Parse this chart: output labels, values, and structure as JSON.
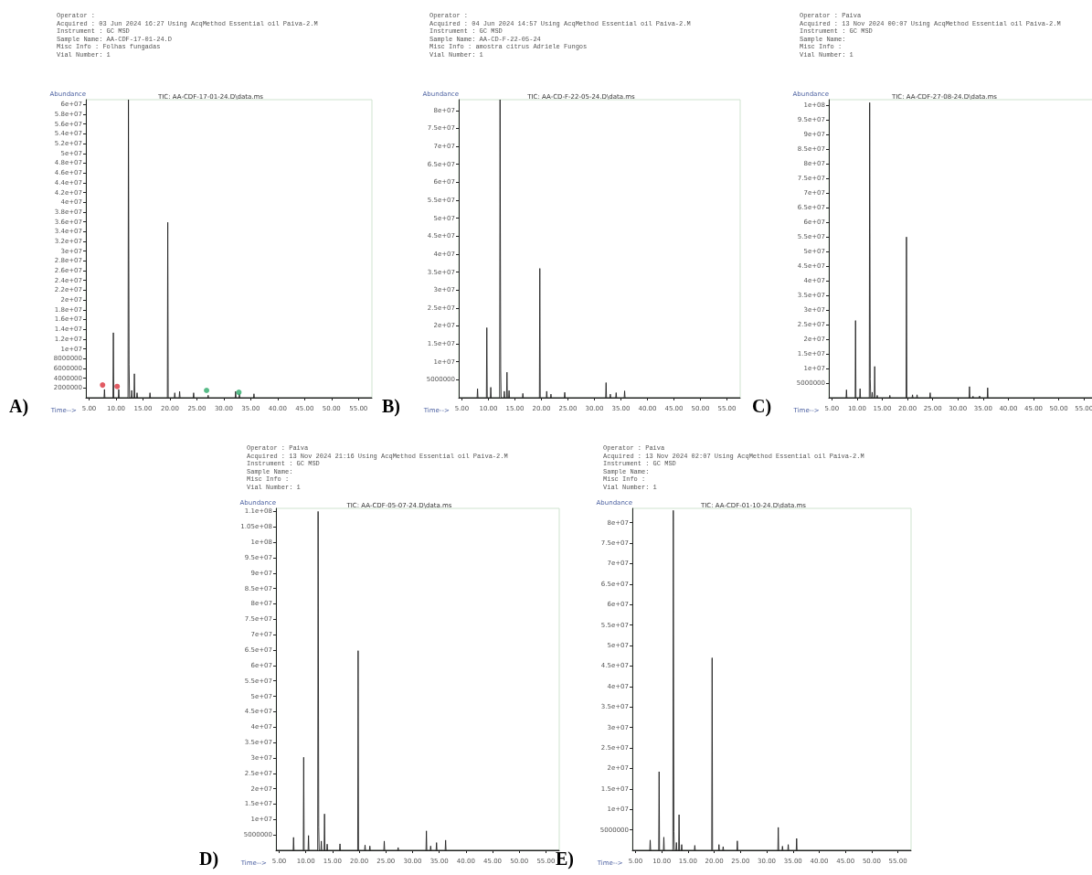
{
  "chart_data": [
    {
      "type": "line",
      "title": "TIC: AA-CDF-17-01-24.D\\data.ms",
      "xlabel": "Time-->",
      "ylabel": "Abundance",
      "marker": "none",
      "line_style": "solid",
      "xlim": [
        4.4,
        57.5
      ],
      "ylim": [
        0,
        61000000
      ],
      "annotations": [
        "Operator :",
        "Acquired : 03 Jun 2024 16:27 Using AcqMethod Essential oil Paiva-2.M",
        "Instrument : GC MSD",
        "Sample Name: AA-CDF-17-01-24.D",
        "Misc Info : Folhas fungadas",
        "Vial Number: 1",
        "A)"
      ],
      "xticks": [
        {
          "value": 5,
          "label": "5.00"
        },
        {
          "value": 10,
          "label": "10.00"
        },
        {
          "value": 15,
          "label": "15.00"
        },
        {
          "value": 20,
          "label": "20.00"
        },
        {
          "value": 25,
          "label": "25.00"
        },
        {
          "value": 30,
          "label": "30.00"
        },
        {
          "value": 35,
          "label": "35.00"
        },
        {
          "value": 40,
          "label": "40.00"
        },
        {
          "value": 45,
          "label": "45.00"
        },
        {
          "value": 50,
          "label": "50.00"
        },
        {
          "value": 55,
          "label": "55.00"
        }
      ],
      "yticks": [
        2000000,
        4000000,
        6000000,
        8000000,
        {
          "value": 10000000,
          "label": "1e+07"
        },
        {
          "value": 12000000,
          "label": "1.2e+07"
        },
        {
          "value": 14000000,
          "label": "1.4e+07"
        },
        {
          "value": 16000000,
          "label": "1.6e+07"
        },
        {
          "value": 18000000,
          "label": "1.8e+07"
        },
        {
          "value": 20000000,
          "label": "2e+07"
        },
        {
          "value": 22000000,
          "label": "2.2e+07"
        },
        {
          "value": 24000000,
          "label": "2.4e+07"
        },
        {
          "value": 26000000,
          "label": "2.6e+07"
        },
        {
          "value": 28000000,
          "label": "2.8e+07"
        },
        {
          "value": 30000000,
          "label": "3e+07"
        },
        {
          "value": 32000000,
          "label": "3.2e+07"
        },
        {
          "value": 34000000,
          "label": "3.4e+07"
        },
        {
          "value": 36000000,
          "label": "3.6e+07"
        },
        {
          "value": 38000000,
          "label": "3.8e+07"
        },
        {
          "value": 40000000,
          "label": "4e+07"
        },
        {
          "value": 42000000,
          "label": "4.2e+07"
        },
        {
          "value": 44000000,
          "label": "4.4e+07"
        },
        {
          "value": 46000000,
          "label": "4.6e+07"
        },
        {
          "value": 48000000,
          "label": "4.8e+07"
        },
        {
          "value": 50000000,
          "label": "5e+07"
        },
        {
          "value": 52000000,
          "label": "5.2e+07"
        },
        {
          "value": 54000000,
          "label": "5.4e+07"
        },
        {
          "value": 56000000,
          "label": "5.6e+07"
        },
        {
          "value": 58000000,
          "label": "5.8e+07"
        },
        {
          "value": 60000000,
          "label": "6e+07"
        }
      ],
      "series": [
        {
          "color": "#222222",
          "x": [
            4.4,
            7.77,
            7.85,
            7.93,
            9.42,
            9.5,
            9.58,
            10.42,
            10.5,
            10.58,
            12.22,
            12.3,
            12.42,
            12.5,
            12.82,
            12.9,
            12.98,
            13.32,
            13.4,
            13.48,
            13.82,
            13.9,
            13.98,
            16.22,
            16.3,
            16.38,
            19.52,
            19.6,
            19.68,
            20.82,
            20.9,
            20.98,
            21.72,
            21.8,
            21.88,
            24.32,
            24.4,
            24.48,
            27.02,
            27.1,
            27.18,
            32.12,
            32.2,
            32.28,
            32.82,
            32.9,
            32.98,
            35.52,
            35.6,
            35.68,
            57.5
          ],
          "values": [
            0,
            0,
            1700000,
            0,
            0,
            13300000,
            0,
            0,
            1700000,
            0,
            0,
            61000000,
            6900000,
            0,
            0,
            1500000,
            0,
            0,
            4900000,
            0,
            0,
            1000000,
            0,
            0,
            1000000,
            0,
            0,
            35900000,
            0,
            0,
            1000000,
            0,
            0,
            1300000,
            0,
            0,
            1000000,
            0,
            0,
            500000,
            0,
            0,
            1300000,
            0,
            0,
            800000,
            0,
            0,
            800000,
            0,
            0
          ]
        },
        {
          "type": "scatter",
          "marker": "circle",
          "x": [
            7.5,
            10.2,
            26.8,
            32.8
          ],
          "values": [
            2600000,
            2300000,
            1500000,
            1100000
          ],
          "colors": [
            "#d9323c",
            "#d9323c",
            "#2eaa6a",
            "#2eaa6a"
          ]
        }
      ]
    },
    {
      "type": "line",
      "title": "TIC: AA-CD-F-22-05-24.D\\data.ms",
      "xlabel": "Time-->",
      "ylabel": "Abundance",
      "marker": "none",
      "line_style": "solid",
      "xlim": [
        4.4,
        57.5
      ],
      "ylim": [
        0,
        83000000
      ],
      "annotations": [
        "Operator :",
        "Acquired : 04 Jun 2024 14:57 Using AcqMethod Essential oil Paiva-2.M",
        "Instrument : GC MSD",
        "Sample Name: AA-CD-F-22-05-24",
        "Misc Info : amostra citrus Adriele Fungos",
        "Vial Number: 1",
        "B)"
      ],
      "xticks": [
        {
          "value": 5,
          "label": "5.00"
        },
        {
          "value": 10,
          "label": "10.00"
        },
        {
          "value": 15,
          "label": "15.00"
        },
        {
          "value": 20,
          "label": "20.00"
        },
        {
          "value": 25,
          "label": "25.00"
        },
        {
          "value": 30,
          "label": "30.00"
        },
        {
          "value": 35,
          "label": "35.00"
        },
        {
          "value": 40,
          "label": "40.00"
        },
        {
          "value": 45,
          "label": "45.00"
        },
        {
          "value": 50,
          "label": "50.00"
        },
        {
          "value": 55,
          "label": "55.00"
        }
      ],
      "yticks": [
        5000000,
        {
          "value": 10000000,
          "label": "1e+07"
        },
        {
          "value": 15000000,
          "label": "1.5e+07"
        },
        {
          "value": 20000000,
          "label": "2e+07"
        },
        {
          "value": 25000000,
          "label": "2.5e+07"
        },
        {
          "value": 30000000,
          "label": "3e+07"
        },
        {
          "value": 35000000,
          "label": "3.5e+07"
        },
        {
          "value": 40000000,
          "label": "4e+07"
        },
        {
          "value": 45000000,
          "label": "4.5e+07"
        },
        {
          "value": 50000000,
          "label": "5e+07"
        },
        {
          "value": 55000000,
          "label": "5.5e+07"
        },
        {
          "value": 60000000,
          "label": "6e+07"
        },
        {
          "value": 65000000,
          "label": "6.5e+07"
        },
        {
          "value": 70000000,
          "label": "7e+07"
        },
        {
          "value": 75000000,
          "label": "7.5e+07"
        },
        {
          "value": 80000000,
          "label": "8e+07"
        }
      ],
      "series": [
        {
          "color": "#222222",
          "x": [
            4.4,
            7.87,
            7.95,
            8.03,
            9.62,
            9.7,
            9.78,
            10.37,
            10.45,
            10.53,
            12.12,
            12.2,
            12.32,
            12.4,
            12.92,
            13.0,
            13.08,
            13.42,
            13.5,
            13.58,
            13.82,
            13.9,
            13.98,
            16.42,
            16.5,
            16.58,
            19.62,
            19.7,
            19.78,
            20.92,
            21.0,
            21.08,
            21.72,
            21.8,
            21.88,
            24.32,
            24.4,
            24.48,
            32.12,
            32.2,
            32.28,
            32.92,
            33.0,
            33.08,
            34.02,
            34.1,
            34.18,
            35.62,
            35.7,
            35.78,
            57.5
          ],
          "values": [
            0,
            0,
            2500000,
            0,
            0,
            19500000,
            0,
            0,
            2900000,
            0,
            0,
            83000000,
            7400000,
            0,
            0,
            1800000,
            0,
            0,
            7100000,
            0,
            0,
            2000000,
            0,
            0,
            1200000,
            0,
            0,
            36000000,
            0,
            0,
            1800000,
            0,
            0,
            1000000,
            0,
            0,
            1500000,
            0,
            0,
            4200000,
            0,
            0,
            1000000,
            0,
            0,
            1400000,
            0,
            0,
            1900000,
            0,
            0
          ]
        }
      ]
    },
    {
      "type": "line",
      "title": "TIC: AA-CDF-27-08-24.D\\data.ms",
      "xlabel": "Time-->",
      "ylabel": "Abundance",
      "marker": "none",
      "line_style": "solid",
      "xlim": [
        4.4,
        57.5
      ],
      "ylim": [
        0,
        102000000
      ],
      "annotations": [
        "Operator : Paiva",
        "Acquired : 13 Nov 2024 00:07 Using AcqMethod Essential oil Paiva-2.M",
        "Instrument : GC MSD",
        "Sample Name:",
        "Misc Info :",
        "Vial Number: 1",
        "C)"
      ],
      "xticks": [
        {
          "value": 5,
          "label": "5.00"
        },
        {
          "value": 10,
          "label": "10.00"
        },
        {
          "value": 15,
          "label": "15.00"
        },
        {
          "value": 20,
          "label": "20.00"
        },
        {
          "value": 25,
          "label": "25.00"
        },
        {
          "value": 30,
          "label": "30.00"
        },
        {
          "value": 35,
          "label": "35.00"
        },
        {
          "value": 40,
          "label": "40.00"
        },
        {
          "value": 45,
          "label": "45.00"
        },
        {
          "value": 50,
          "label": "50.00"
        },
        {
          "value": 55,
          "label": "55.00"
        }
      ],
      "yticks": [
        5000000,
        {
          "value": 10000000,
          "label": "1e+07"
        },
        {
          "value": 15000000,
          "label": "1.5e+07"
        },
        {
          "value": 20000000,
          "label": "2e+07"
        },
        {
          "value": 25000000,
          "label": "2.5e+07"
        },
        {
          "value": 30000000,
          "label": "3e+07"
        },
        {
          "value": 35000000,
          "label": "3.5e+07"
        },
        {
          "value": 40000000,
          "label": "4e+07"
        },
        {
          "value": 45000000,
          "label": "4.5e+07"
        },
        {
          "value": 50000000,
          "label": "5e+07"
        },
        {
          "value": 55000000,
          "label": "5.5e+07"
        },
        {
          "value": 60000000,
          "label": "6e+07"
        },
        {
          "value": 65000000,
          "label": "6.5e+07"
        },
        {
          "value": 70000000,
          "label": "7e+07"
        },
        {
          "value": 75000000,
          "label": "7.5e+07"
        },
        {
          "value": 80000000,
          "label": "8e+07"
        },
        {
          "value": 85000000,
          "label": "8.5e+07"
        },
        {
          "value": 90000000,
          "label": "9e+07"
        },
        {
          "value": 95000000,
          "label": "9.5e+07"
        },
        {
          "value": 100000000,
          "label": "1e+08"
        }
      ],
      "series": [
        {
          "color": "#222222",
          "x": [
            4.4,
            7.82,
            7.9,
            7.98,
            9.62,
            9.7,
            9.78,
            10.52,
            10.6,
            10.68,
            12.42,
            12.5,
            12.62,
            12.7,
            12.92,
            13.0,
            13.08,
            13.42,
            13.5,
            13.58,
            13.92,
            14.0,
            14.08,
            16.42,
            16.5,
            16.58,
            19.72,
            19.8,
            19.88,
            20.92,
            21.0,
            21.08,
            21.82,
            21.9,
            21.98,
            24.42,
            24.5,
            24.58,
            32.22,
            32.3,
            32.38,
            32.92,
            33.0,
            33.08,
            34.22,
            34.3,
            34.38,
            35.82,
            35.9,
            35.98,
            57.5
          ],
          "values": [
            0,
            0,
            2700000,
            0,
            0,
            26400000,
            0,
            0,
            3100000,
            0,
            0,
            101000000,
            6400000,
            0,
            0,
            1900000,
            0,
            0,
            10700000,
            0,
            0,
            800000,
            0,
            0,
            800000,
            0,
            0,
            55000000,
            0,
            0,
            1000000,
            0,
            0,
            1000000,
            0,
            0,
            1700000,
            0,
            0,
            3800000,
            0,
            0,
            500000,
            0,
            0,
            600000,
            0,
            0,
            3400000,
            0,
            0
          ]
        }
      ]
    },
    {
      "type": "line",
      "title": "TIC: AA-CDF-05-07-24.D\\data.ms",
      "xlabel": "Time-->",
      "ylabel": "Abundance",
      "marker": "none",
      "line_style": "solid",
      "xlim": [
        4.4,
        57.5
      ],
      "ylim": [
        0,
        111000000
      ],
      "annotations": [
        "Operator : Paiva",
        "Acquired : 13 Nov 2024 21:16 Using AcqMethod Essential oil Paiva-2.M",
        "Instrument : GC MSD",
        "Sample Name:",
        "Misc Info :",
        "Vial Number: 1",
        "D)"
      ],
      "xticks": [
        {
          "value": 5,
          "label": "5.00"
        },
        {
          "value": 10,
          "label": "10.00"
        },
        {
          "value": 15,
          "label": "15.00"
        },
        {
          "value": 20,
          "label": "20.00"
        },
        {
          "value": 25,
          "label": "25.00"
        },
        {
          "value": 30,
          "label": "30.00"
        },
        {
          "value": 35,
          "label": "35.00"
        },
        {
          "value": 40,
          "label": "40.00"
        },
        {
          "value": 45,
          "label": "45.00"
        },
        {
          "value": 50,
          "label": "50.00"
        },
        {
          "value": 55,
          "label": "55.00"
        }
      ],
      "yticks": [
        5000000,
        {
          "value": 10000000,
          "label": "1e+07"
        },
        {
          "value": 15000000,
          "label": "1.5e+07"
        },
        {
          "value": 20000000,
          "label": "2e+07"
        },
        {
          "value": 25000000,
          "label": "2.5e+07"
        },
        {
          "value": 30000000,
          "label": "3e+07"
        },
        {
          "value": 35000000,
          "label": "3.5e+07"
        },
        {
          "value": 40000000,
          "label": "4e+07"
        },
        {
          "value": 45000000,
          "label": "4.5e+07"
        },
        {
          "value": 50000000,
          "label": "5e+07"
        },
        {
          "value": 55000000,
          "label": "5.5e+07"
        },
        {
          "value": 60000000,
          "label": "6e+07"
        },
        {
          "value": 65000000,
          "label": "6.5e+07"
        },
        {
          "value": 70000000,
          "label": "7e+07"
        },
        {
          "value": 75000000,
          "label": "7.5e+07"
        },
        {
          "value": 80000000,
          "label": "8e+07"
        },
        {
          "value": 85000000,
          "label": "8.5e+07"
        },
        {
          "value": 90000000,
          "label": "9e+07"
        },
        {
          "value": 95000000,
          "label": "9.5e+07"
        },
        {
          "value": 100000000,
          "label": "1e+08"
        },
        {
          "value": 105000000,
          "label": "1.05e+08"
        },
        {
          "value": 110000000,
          "label": "1.1e+08"
        }
      ],
      "series": [
        {
          "color": "#222222",
          "x": [
            4.4,
            7.62,
            7.7,
            7.78,
            9.52,
            9.6,
            9.68,
            10.42,
            10.5,
            10.58,
            12.22,
            12.3,
            12.42,
            12.5,
            12.82,
            12.9,
            12.98,
            13.42,
            13.5,
            13.58,
            13.92,
            14.0,
            14.08,
            16.32,
            16.4,
            16.48,
            19.72,
            19.8,
            19.88,
            21.02,
            21.1,
            21.18,
            21.92,
            22.0,
            22.08,
            24.62,
            24.7,
            24.78,
            27.22,
            27.3,
            27.38,
            32.52,
            32.6,
            32.68,
            33.32,
            33.4,
            33.48,
            34.42,
            34.5,
            34.58,
            36.12,
            36.2,
            36.28,
            57.5
          ],
          "values": [
            0,
            0,
            4200000,
            0,
            0,
            30200000,
            0,
            0,
            4800000,
            0,
            0,
            110000000,
            7600000,
            0,
            0,
            3000000,
            0,
            0,
            11800000,
            0,
            0,
            2000000,
            0,
            0,
            2100000,
            0,
            0,
            64800000,
            0,
            0,
            1700000,
            0,
            0,
            1400000,
            0,
            0,
            3000000,
            0,
            0,
            900000,
            0,
            0,
            6300000,
            0,
            0,
            1400000,
            0,
            0,
            2500000,
            0,
            0,
            3300000,
            0,
            0
          ]
        }
      ]
    },
    {
      "type": "line",
      "title": "TIC: AA-CDF-01-10-24.D\\data.ms",
      "xlabel": "Time-->",
      "ylabel": "Abundance",
      "marker": "none",
      "line_style": "solid",
      "xlim": [
        4.4,
        57.5
      ],
      "ylim": [
        0,
        83500000
      ],
      "annotations": [
        "Operator : Paiva",
        "Acquired : 13 Nov 2024 02:07 Using AcqMethod Essential oil Paiva-2.M",
        "Instrument : GC MSD",
        "Sample Name:",
        "Misc Info :",
        "Vial Number: 1",
        "E)"
      ],
      "xticks": [
        {
          "value": 5,
          "label": "5.00"
        },
        {
          "value": 10,
          "label": "10.00"
        },
        {
          "value": 15,
          "label": "15.00"
        },
        {
          "value": 20,
          "label": "20.00"
        },
        {
          "value": 25,
          "label": "25.00"
        },
        {
          "value": 30,
          "label": "30.00"
        },
        {
          "value": 35,
          "label": "35.00"
        },
        {
          "value": 40,
          "label": "40.00"
        },
        {
          "value": 45,
          "label": "45.00"
        },
        {
          "value": 50,
          "label": "50.00"
        },
        {
          "value": 55,
          "label": "55.00"
        }
      ],
      "yticks": [
        5000000,
        {
          "value": 10000000,
          "label": "1e+07"
        },
        {
          "value": 15000000,
          "label": "1.5e+07"
        },
        {
          "value": 20000000,
          "label": "2e+07"
        },
        {
          "value": 25000000,
          "label": "2.5e+07"
        },
        {
          "value": 30000000,
          "label": "3e+07"
        },
        {
          "value": 35000000,
          "label": "3.5e+07"
        },
        {
          "value": 40000000,
          "label": "4e+07"
        },
        {
          "value": 45000000,
          "label": "4.5e+07"
        },
        {
          "value": 50000000,
          "label": "5e+07"
        },
        {
          "value": 55000000,
          "label": "5.5e+07"
        },
        {
          "value": 60000000,
          "label": "6e+07"
        },
        {
          "value": 65000000,
          "label": "6.5e+07"
        },
        {
          "value": 70000000,
          "label": "7e+07"
        },
        {
          "value": 75000000,
          "label": "7.5e+07"
        },
        {
          "value": 80000000,
          "label": "8e+07"
        }
      ],
      "series": [
        {
          "color": "#222222",
          "x": [
            4.4,
            7.72,
            7.8,
            7.88,
            9.42,
            9.5,
            9.58,
            10.32,
            10.4,
            10.48,
            12.12,
            12.2,
            12.32,
            12.4,
            12.72,
            12.8,
            12.88,
            13.22,
            13.3,
            13.38,
            13.72,
            13.8,
            13.88,
            16.22,
            16.3,
            16.38,
            19.52,
            19.6,
            19.68,
            20.82,
            20.9,
            20.98,
            21.62,
            21.7,
            21.78,
            24.32,
            24.4,
            24.48,
            32.12,
            32.2,
            32.28,
            32.92,
            33.0,
            33.08,
            34.02,
            34.1,
            34.18,
            35.62,
            35.7,
            35.78,
            57.5
          ],
          "values": [
            0,
            0,
            2500000,
            0,
            0,
            19200000,
            0,
            0,
            3200000,
            0,
            0,
            83000000,
            4500000,
            0,
            0,
            1900000,
            0,
            0,
            8700000,
            0,
            0,
            1400000,
            0,
            0,
            1200000,
            0,
            0,
            47000000,
            0,
            0,
            1400000,
            0,
            0,
            900000,
            0,
            0,
            2300000,
            0,
            0,
            5600000,
            0,
            0,
            1000000,
            0,
            0,
            1400000,
            0,
            0,
            2900000,
            0,
            0
          ]
        }
      ]
    }
  ]
}
